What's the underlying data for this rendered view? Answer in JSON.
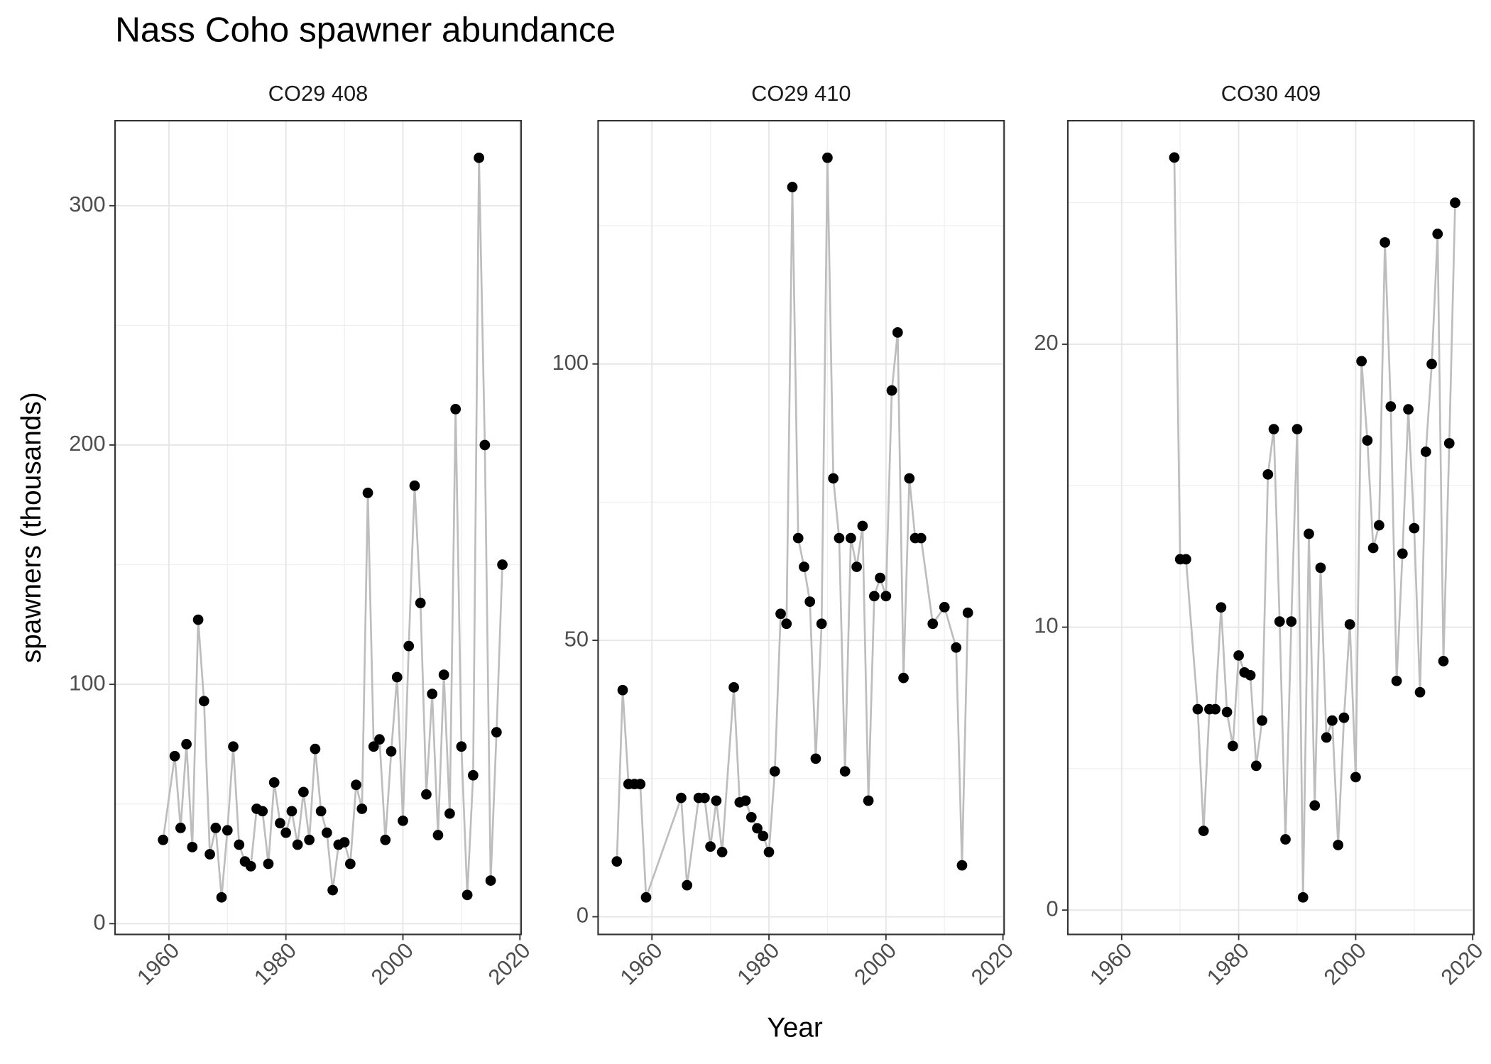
{
  "title": "Nass Coho spawner abundance",
  "x_label": "Year",
  "y_label": "spawners (thousands)",
  "chart_data": [
    {
      "type": "line",
      "title": "CO29 408",
      "x": [
        1959,
        1961,
        1962,
        1963,
        1964,
        1965,
        1966,
        1967,
        1968,
        1969,
        1970,
        1971,
        1972,
        1973,
        1974,
        1975,
        1976,
        1977,
        1978,
        1979,
        1980,
        1981,
        1982,
        1983,
        1984,
        1985,
        1986,
        1987,
        1988,
        1989,
        1990,
        1991,
        1992,
        1993,
        1994,
        1995,
        1996,
        1997,
        1998,
        1999,
        2000,
        2001,
        2002,
        2003,
        2004,
        2005,
        2006,
        2007,
        2008,
        2009,
        2010,
        2011,
        2012,
        2013,
        2014,
        2015,
        2016,
        2017
      ],
      "series": [
        {
          "color": "#bdbdbd",
          "marker_color": "#000000",
          "values": [
            35,
            70,
            40,
            75,
            32,
            127,
            93,
            29,
            40,
            11,
            39,
            74,
            33,
            26,
            24,
            48,
            47,
            25,
            59,
            42,
            38,
            47,
            33,
            55,
            35,
            73,
            47,
            38,
            14,
            33,
            34,
            25,
            58,
            48,
            180,
            74,
            77,
            35,
            72,
            103,
            43,
            116,
            183,
            134,
            54,
            96,
            37,
            104,
            46,
            215,
            74,
            12,
            62,
            320,
            200,
            18,
            80,
            150
          ]
        }
      ],
      "xlim": [
        1950.8,
        2020.2
      ],
      "xticks": [
        1960,
        1980,
        2000,
        2020
      ],
      "ylim": [
        -4.5,
        335.5
      ],
      "yticks": [
        0,
        100,
        200,
        300
      ],
      "grid": true
    },
    {
      "type": "line",
      "title": "CO29 410",
      "x": [
        1954,
        1955,
        1956,
        1957,
        1958,
        1959,
        1965,
        1966,
        1968,
        1969,
        1970,
        1971,
        1972,
        1974,
        1975,
        1976,
        1977,
        1978,
        1979,
        1980,
        1981,
        1982,
        1983,
        1984,
        1985,
        1986,
        1987,
        1988,
        1989,
        1990,
        1991,
        1992,
        1993,
        1994,
        1995,
        1996,
        1997,
        1998,
        1999,
        2000,
        2001,
        2002,
        2003,
        2004,
        2005,
        2006,
        2008,
        2010,
        2012,
        2013,
        2014
      ],
      "series": [
        {
          "color": "#bdbdbd",
          "marker_color": "#000000",
          "values": [
            10,
            41,
            24,
            24,
            24,
            3.5,
            21.5,
            5.7,
            21.5,
            21.5,
            12.7,
            21,
            11.7,
            41.5,
            20.7,
            21,
            18,
            16,
            14.6,
            11.7,
            26.3,
            54.8,
            53,
            132,
            68.5,
            63.3,
            57,
            28.6,
            53,
            137.3,
            79.3,
            68.5,
            26.3,
            68.5,
            63.3,
            70.7,
            21,
            58,
            61.3,
            58,
            95.2,
            105.7,
            43.2,
            79.3,
            68.5,
            68.5,
            53,
            56,
            48.7,
            9.3,
            55
          ]
        }
      ],
      "xlim": [
        1950.8,
        2020.2
      ],
      "xticks": [
        1960,
        1980,
        2000,
        2020
      ],
      "ylim": [
        -3.2,
        144
      ],
      "yticks": [
        0,
        50,
        100
      ],
      "grid": true
    },
    {
      "type": "line",
      "title": "CO30 409",
      "x": [
        1969,
        1970,
        1971,
        1973,
        1974,
        1975,
        1976,
        1977,
        1978,
        1979,
        1980,
        1981,
        1982,
        1983,
        1984,
        1985,
        1986,
        1987,
        1988,
        1989,
        1990,
        1991,
        1992,
        1993,
        1994,
        1995,
        1996,
        1997,
        1998,
        1999,
        2000,
        2001,
        2002,
        2003,
        2004,
        2005,
        2006,
        2007,
        2008,
        2009,
        2010,
        2011,
        2012,
        2013,
        2014,
        2015,
        2016,
        2017
      ],
      "series": [
        {
          "color": "#bdbdbd",
          "marker_color": "#000000",
          "values": [
            26.6,
            12.4,
            12.4,
            7.1,
            2.8,
            7.1,
            7.1,
            10.7,
            7,
            5.8,
            9,
            8.4,
            8.3,
            5.1,
            6.7,
            15.4,
            17,
            10.2,
            2.5,
            10.2,
            17,
            0.45,
            13.3,
            3.7,
            12.1,
            6.1,
            6.7,
            2.3,
            6.8,
            10.1,
            4.7,
            19.4,
            16.6,
            12.8,
            13.6,
            23.6,
            17.8,
            8.1,
            12.6,
            17.7,
            13.5,
            7.7,
            16.2,
            19.3,
            23.9,
            8.8,
            16.5,
            25
          ]
        }
      ],
      "xlim": [
        1950.8,
        2020.2
      ],
      "xticks": [
        1960,
        1980,
        2000,
        2020
      ],
      "ylim": [
        -0.86,
        27.9
      ],
      "yticks": [
        0,
        10,
        20
      ],
      "grid": true
    }
  ]
}
